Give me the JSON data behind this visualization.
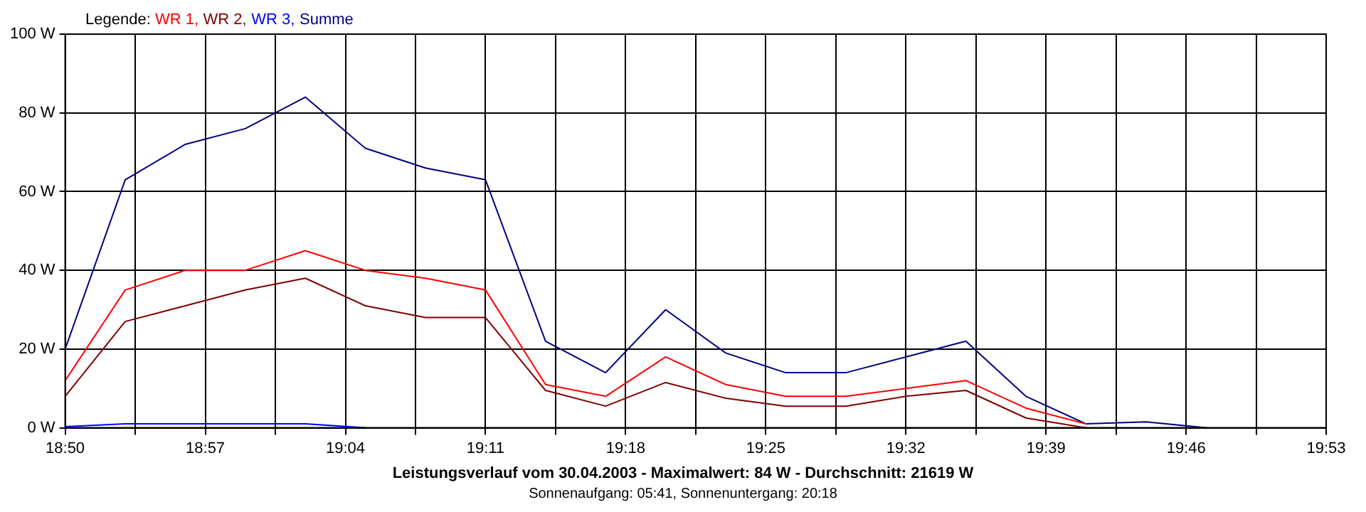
{
  "chart_data": {
    "type": "line",
    "title": "Leistungsverlauf vom 30.04.2003 - Maximalwert: 84 W - Durchschnitt: 21619 W",
    "subtitle": "Sonnenaufgang: 05:41, Sonnenuntergang: 20:18",
    "legend_title": "Legende:",
    "x": [
      18.8333,
      18.8833,
      18.9333,
      18.9833,
      19.0333,
      19.0833,
      19.1333,
      19.1833,
      19.2333,
      19.2833,
      19.3333,
      19.3833,
      19.4333,
      19.4833,
      19.5333,
      19.5833,
      19.6333,
      19.6833,
      19.7333,
      19.7833
    ],
    "series": [
      {
        "name": "WR 1,",
        "color": "#ff0000",
        "values": [
          12,
          35,
          40,
          40,
          45,
          40,
          38,
          35,
          11,
          8,
          18,
          11,
          8,
          8,
          10,
          12,
          5,
          1,
          null,
          null
        ]
      },
      {
        "name": "WR 2,",
        "color": "#800000",
        "values": [
          8,
          27,
          31,
          35,
          38,
          31,
          28,
          28,
          9.5,
          5.5,
          11.5,
          7.5,
          5.5,
          5.5,
          8,
          9.5,
          2.5,
          0,
          null,
          null
        ]
      },
      {
        "name": "WR 3,",
        "color": "#0000ff",
        "values": [
          0.3,
          1,
          1,
          1,
          1,
          0,
          null,
          null,
          null,
          null,
          null,
          null,
          null,
          null,
          null,
          null,
          null,
          null,
          null,
          null
        ]
      },
      {
        "name": "Summe",
        "color": "#000080",
        "values": [
          20,
          63,
          72,
          76,
          84,
          71,
          66,
          63,
          22,
          14,
          30,
          19,
          14,
          14,
          18,
          22,
          8,
          1,
          1.5,
          0
        ]
      }
    ],
    "xlim": [
      18.8333,
      19.8833
    ],
    "xticks": [
      {
        "value": 18.8333,
        "label": "18:50"
      },
      {
        "value": 18.8917,
        "label": null
      },
      {
        "value": 18.95,
        "label": "18:57"
      },
      {
        "value": 19.0083,
        "label": null
      },
      {
        "value": 19.0667,
        "label": "19:04"
      },
      {
        "value": 19.125,
        "label": null
      },
      {
        "value": 19.1833,
        "label": "19:11"
      },
      {
        "value": 19.2417,
        "label": null
      },
      {
        "value": 19.3,
        "label": "19:18"
      },
      {
        "value": 19.3583,
        "label": null
      },
      {
        "value": 19.4167,
        "label": "19:25"
      },
      {
        "value": 19.475,
        "label": null
      },
      {
        "value": 19.5333,
        "label": "19:32"
      },
      {
        "value": 19.5917,
        "label": null
      },
      {
        "value": 19.65,
        "label": "19:39"
      },
      {
        "value": 19.7083,
        "label": null
      },
      {
        "value": 19.7667,
        "label": "19:46"
      },
      {
        "value": 19.825,
        "label": null
      },
      {
        "value": 19.8833,
        "label": "19:53"
      }
    ],
    "ylim": [
      0,
      100
    ],
    "yticks": [
      {
        "value": 0,
        "label": "0 W"
      },
      {
        "value": 20,
        "label": "20 W"
      },
      {
        "value": 40,
        "label": "40 W"
      },
      {
        "value": 60,
        "label": "60 W"
      },
      {
        "value": 80,
        "label": "80 W"
      },
      {
        "value": 100,
        "label": "100 W"
      }
    ],
    "grid": true,
    "legend": "top left",
    "marker": "none",
    "line_style": "solid"
  }
}
